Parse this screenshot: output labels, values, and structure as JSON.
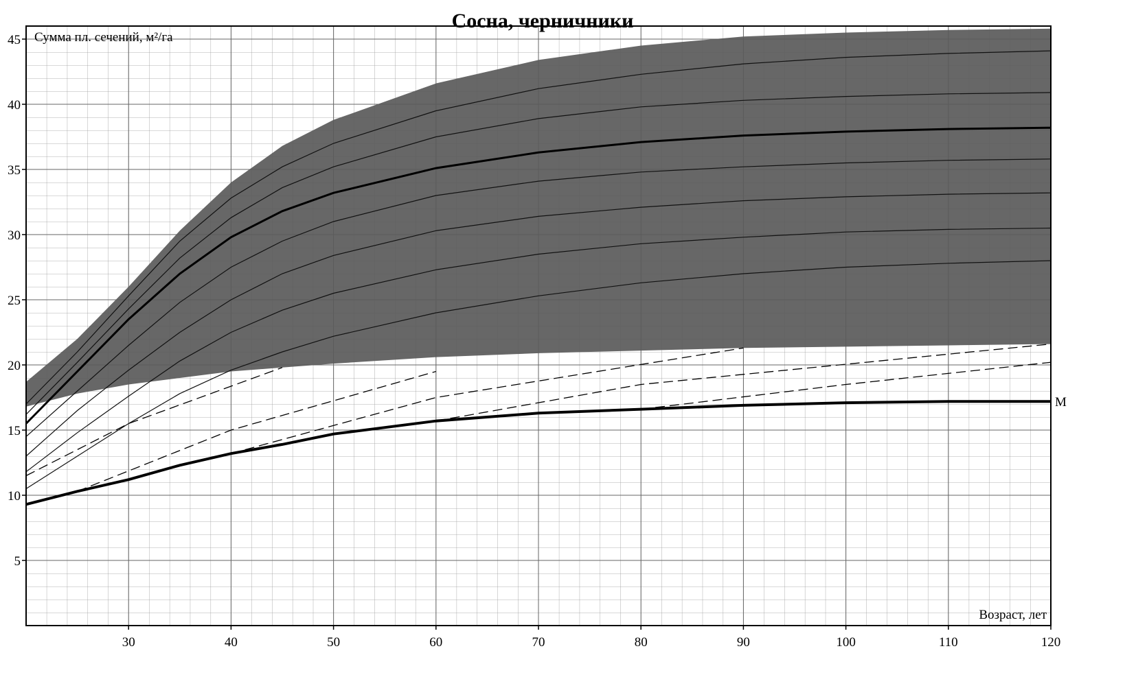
{
  "chart_data": {
    "type": "line",
    "title": "Сосна, черничники",
    "y_label": "Сумма пл. сечений, м²/га",
    "x_label": "Возраст, лет",
    "x": [
      20,
      25,
      30,
      35,
      40,
      45,
      50,
      60,
      70,
      80,
      90,
      100,
      110,
      120
    ],
    "xlim": [
      20,
      120
    ],
    "ylim": [
      0,
      46
    ],
    "xticks": [
      30,
      40,
      50,
      60,
      70,
      80,
      90,
      100,
      110,
      120
    ],
    "yticks": [
      5,
      10,
      15,
      20,
      25,
      30,
      35,
      40,
      45
    ],
    "grid": true,
    "band": {
      "color": "#5a5a5a",
      "upper": [
        18.7,
        22,
        26,
        30.3,
        34,
        36.8,
        38.8,
        41.6,
        43.4,
        44.5,
        45.2,
        45.5,
        45.7,
        45.8
      ],
      "lower": [
        16.8,
        17.8,
        18.5,
        19,
        19.5,
        19.8,
        20.1,
        20.6,
        20.9,
        21.1,
        21.3,
        21.4,
        21.5,
        21.6
      ]
    },
    "series": [
      {
        "color": "#111111",
        "width": 1.2,
        "values": [
          17,
          21,
          25.3,
          29.5,
          32.8,
          35.2,
          37,
          39.5,
          41.2,
          42.3,
          43.1,
          43.6,
          43.9,
          44.1
        ]
      },
      {
        "color": "#111111",
        "width": 1.2,
        "values": [
          16.2,
          20.2,
          24.3,
          28.2,
          31.3,
          33.6,
          35.2,
          37.5,
          38.9,
          39.8,
          40.3,
          40.6,
          40.8,
          40.9
        ]
      },
      {
        "color": "#000000",
        "width": 3,
        "values": [
          15.5,
          19.5,
          23.5,
          27,
          29.8,
          31.8,
          33.2,
          35.1,
          36.3,
          37.1,
          37.6,
          37.9,
          38.1,
          38.2
        ]
      },
      {
        "color": "#111111",
        "width": 1.2,
        "values": [
          14.5,
          18,
          21.5,
          24.8,
          27.5,
          29.5,
          31,
          33,
          34.1,
          34.8,
          35.2,
          35.5,
          35.7,
          35.8
        ]
      },
      {
        "color": "#111111",
        "width": 1.2,
        "values": [
          13,
          16.5,
          19.6,
          22.5,
          25,
          27,
          28.4,
          30.3,
          31.4,
          32.1,
          32.6,
          32.9,
          33.1,
          33.2
        ]
      },
      {
        "color": "#111111",
        "width": 1.2,
        "values": [
          11.8,
          14.8,
          17.6,
          20.3,
          22.5,
          24.2,
          25.5,
          27.3,
          28.5,
          29.3,
          29.8,
          30.2,
          30.4,
          30.5
        ]
      },
      {
        "color": "#111111",
        "width": 1.2,
        "values": [
          10.5,
          13,
          15.5,
          17.8,
          19.6,
          21,
          22.2,
          24,
          25.3,
          26.3,
          27,
          27.5,
          27.8,
          28
        ]
      },
      {
        "name": "M",
        "color": "#000000",
        "width": 4,
        "values": [
          9.3,
          10.3,
          11.2,
          12.3,
          13.2,
          13.9,
          14.7,
          15.7,
          16.3,
          16.6,
          16.9,
          17.1,
          17.2,
          17.2
        ]
      },
      {
        "color": "#000000",
        "width": 1.3,
        "dashed": true,
        "x": [
          20,
          30,
          45
        ],
        "values": [
          11.5,
          15.5,
          19.8
        ]
      },
      {
        "color": "#000000",
        "width": 1.3,
        "dashed": true,
        "x": [
          25,
          40,
          60
        ],
        "values": [
          10.3,
          15,
          19.5
        ]
      },
      {
        "color": "#000000",
        "width": 1.3,
        "dashed": true,
        "x": [
          40,
          60,
          90
        ],
        "values": [
          13.2,
          17.5,
          21.3
        ]
      },
      {
        "color": "#000000",
        "width": 1.3,
        "dashed": true,
        "x": [
          60,
          80,
          120
        ],
        "values": [
          15.7,
          18.5,
          21.6
        ]
      },
      {
        "color": "#000000",
        "width": 1.3,
        "dashed": true,
        "x": [
          80,
          100,
          120
        ],
        "values": [
          16.6,
          18.5,
          20.2
        ]
      }
    ]
  }
}
